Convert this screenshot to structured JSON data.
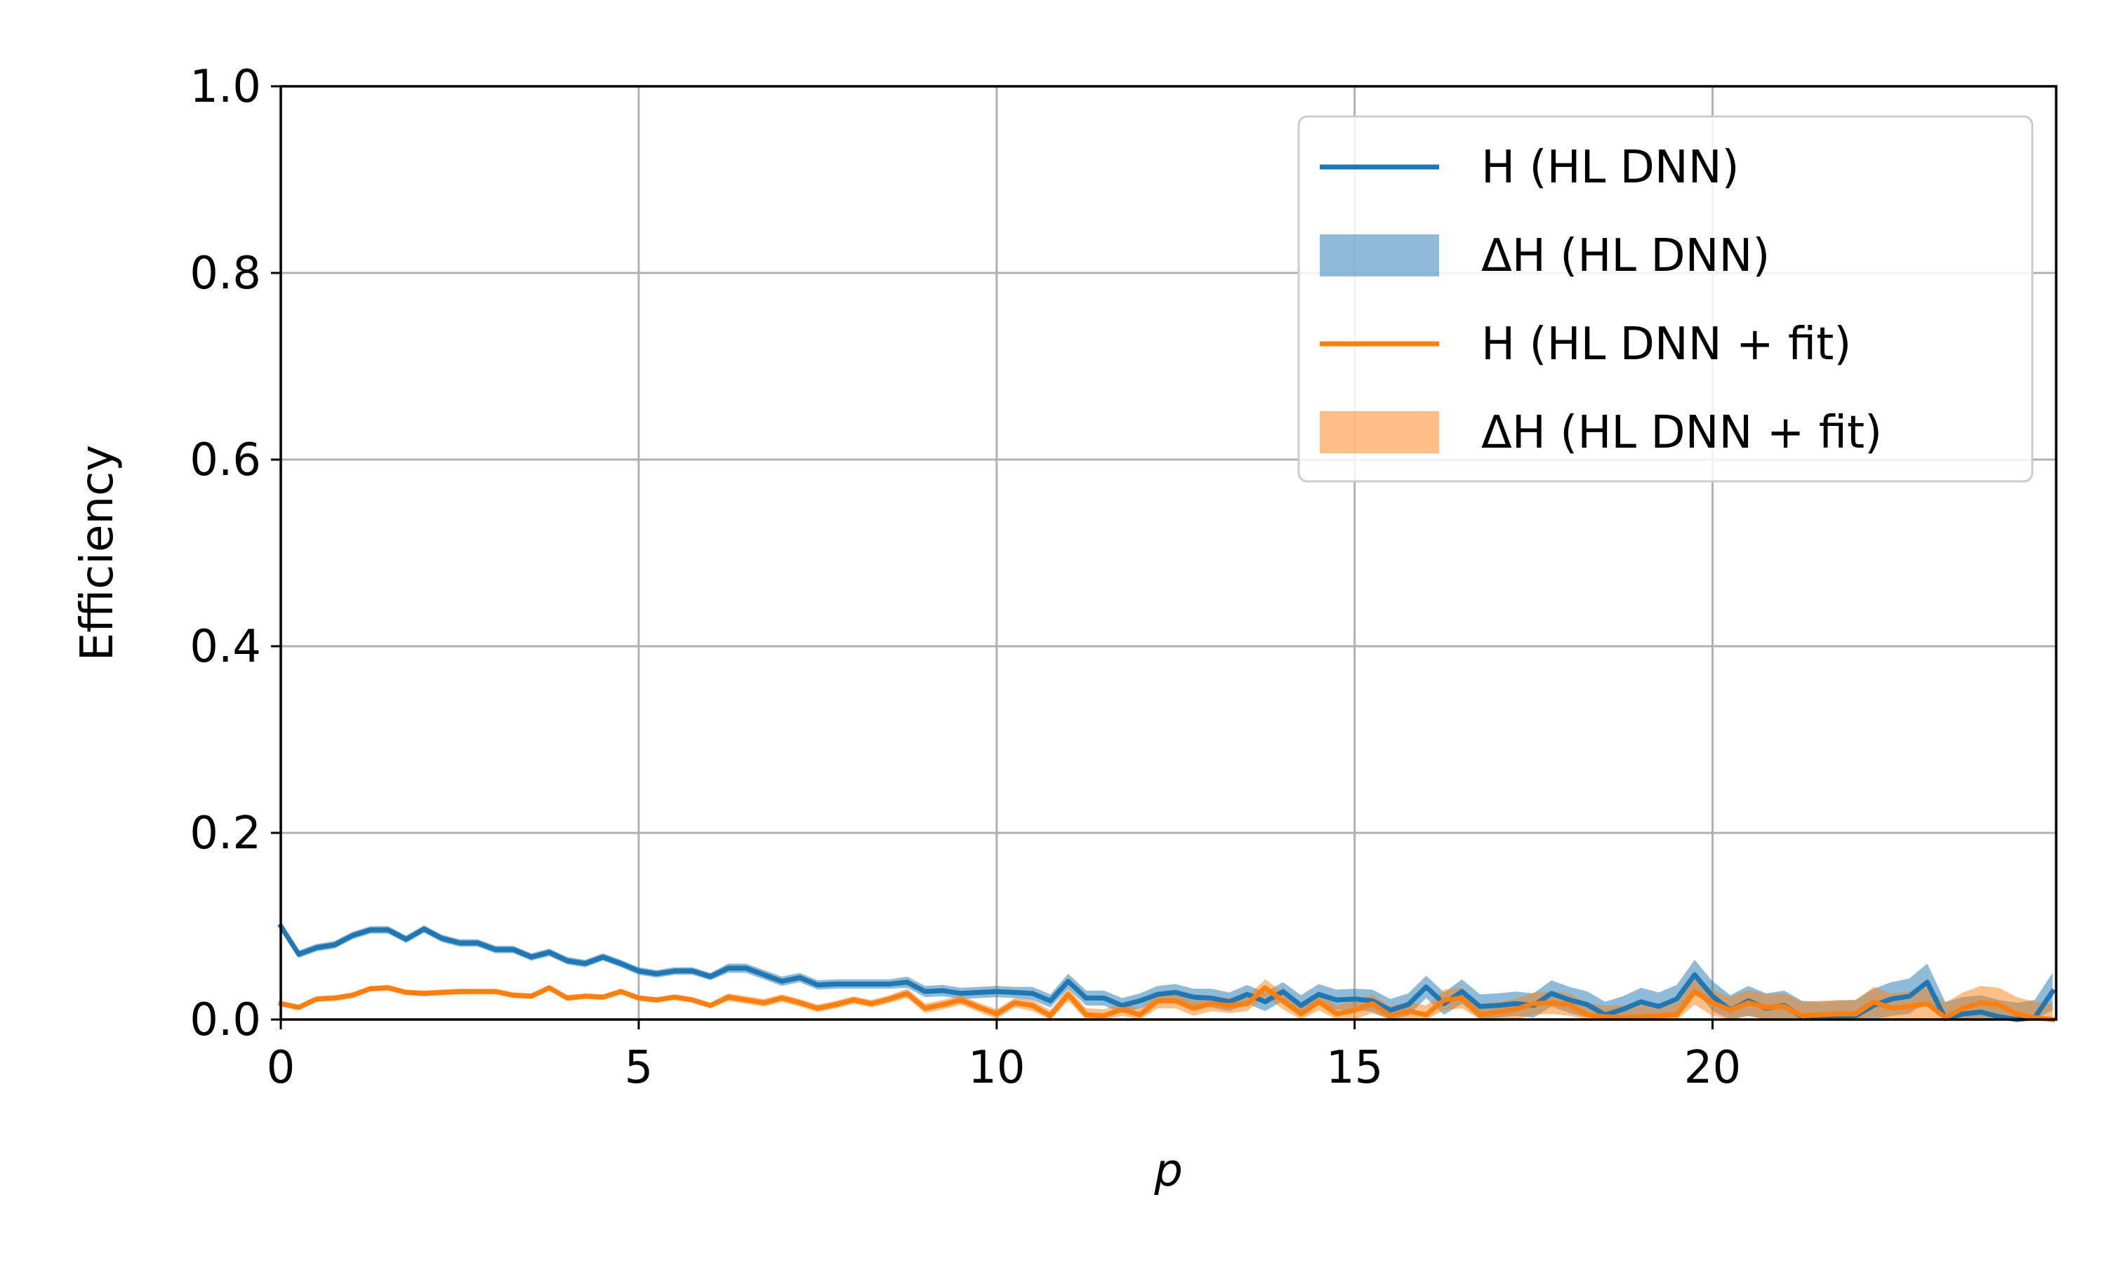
{
  "chart_data": {
    "type": "line",
    "title": "",
    "xlabel": "p",
    "ylabel": "Efficiency",
    "xlim": [
      0,
      24.8
    ],
    "ylim": [
      0.0,
      1.0
    ],
    "grid": true,
    "legend_placement": "top-right",
    "x_ticks": [
      0,
      5,
      10,
      15,
      20
    ],
    "x_tick_labels": [
      "0",
      "5",
      "10",
      "15",
      "20"
    ],
    "y_ticks": [
      0.0,
      0.2,
      0.4,
      0.6,
      0.8,
      1.0
    ],
    "y_tick_labels": [
      "0.0",
      "0.2",
      "0.4",
      "0.6",
      "0.8",
      "1.0"
    ],
    "x": [
      0.0,
      0.25,
      0.5,
      0.75,
      1.0,
      1.25,
      1.5,
      1.75,
      2.0,
      2.25,
      2.5,
      2.75,
      3.0,
      3.25,
      3.5,
      3.75,
      4.0,
      4.25,
      4.5,
      4.75,
      5.0,
      5.25,
      5.5,
      5.75,
      6.0,
      6.25,
      6.5,
      6.75,
      7.0,
      7.25,
      7.5,
      7.75,
      8.0,
      8.25,
      8.5,
      8.75,
      9.0,
      9.25,
      9.5,
      9.75,
      10.0,
      10.25,
      10.5,
      10.75,
      11.0,
      11.25,
      11.5,
      11.75,
      12.0,
      12.25,
      12.5,
      12.75,
      13.0,
      13.25,
      13.5,
      13.75,
      14.0,
      14.25,
      14.5,
      14.75,
      15.0,
      15.25,
      15.5,
      15.75,
      16.0,
      16.25,
      16.5,
      16.75,
      17.0,
      17.25,
      17.5,
      17.75,
      18.0,
      18.25,
      18.5,
      18.75,
      19.0,
      19.25,
      19.5,
      19.75,
      20.0,
      20.25,
      20.5,
      20.75,
      21.0,
      21.25,
      21.5,
      21.75,
      22.0,
      22.25,
      22.5,
      22.75,
      23.0,
      23.25,
      23.5,
      23.75,
      24.0,
      24.25,
      24.5,
      24.75
    ],
    "series": [
      {
        "name": "H (HL DNN)",
        "color": "#1f77b4",
        "band_name": "ΔH (HL DNN)",
        "band_color": "#1f77b4",
        "values": [
          0.1,
          0.07,
          0.077,
          0.08,
          0.09,
          0.096,
          0.096,
          0.086,
          0.097,
          0.087,
          0.082,
          0.082,
          0.075,
          0.075,
          0.067,
          0.072,
          0.063,
          0.06,
          0.067,
          0.06,
          0.052,
          0.049,
          0.052,
          0.052,
          0.046,
          0.055,
          0.055,
          0.048,
          0.041,
          0.045,
          0.037,
          0.038,
          0.038,
          0.038,
          0.038,
          0.04,
          0.03,
          0.031,
          0.028,
          0.029,
          0.03,
          0.029,
          0.028,
          0.02,
          0.041,
          0.023,
          0.023,
          0.015,
          0.02,
          0.027,
          0.029,
          0.024,
          0.023,
          0.019,
          0.027,
          0.019,
          0.03,
          0.015,
          0.027,
          0.021,
          0.022,
          0.02,
          0.01,
          0.016,
          0.035,
          0.017,
          0.03,
          0.014,
          0.015,
          0.017,
          0.015,
          0.028,
          0.021,
          0.016,
          0.005,
          0.011,
          0.019,
          0.014,
          0.022,
          0.048,
          0.025,
          0.01,
          0.02,
          0.012,
          0.015,
          0.003,
          0.002,
          0.003,
          0.004,
          0.015,
          0.022,
          0.025,
          0.04,
          0.001,
          0.006,
          0.008,
          0.003,
          0.0,
          0.002,
          0.03
        ],
        "band_halfwidth": [
          0.004,
          0.004,
          0.004,
          0.004,
          0.004,
          0.004,
          0.004,
          0.004,
          0.004,
          0.004,
          0.004,
          0.004,
          0.004,
          0.004,
          0.004,
          0.004,
          0.004,
          0.004,
          0.004,
          0.004,
          0.004,
          0.004,
          0.004,
          0.004,
          0.004,
          0.005,
          0.005,
          0.005,
          0.005,
          0.005,
          0.005,
          0.005,
          0.005,
          0.005,
          0.005,
          0.006,
          0.006,
          0.006,
          0.006,
          0.006,
          0.006,
          0.006,
          0.007,
          0.007,
          0.008,
          0.008,
          0.008,
          0.008,
          0.008,
          0.009,
          0.009,
          0.009,
          0.01,
          0.01,
          0.01,
          0.01,
          0.01,
          0.011,
          0.011,
          0.011,
          0.011,
          0.012,
          0.012,
          0.012,
          0.012,
          0.012,
          0.013,
          0.013,
          0.013,
          0.013,
          0.013,
          0.014,
          0.014,
          0.014,
          0.014,
          0.014,
          0.015,
          0.015,
          0.015,
          0.016,
          0.016,
          0.016,
          0.016,
          0.016,
          0.016,
          0.017,
          0.017,
          0.017,
          0.017,
          0.018,
          0.018,
          0.019,
          0.02,
          0.018,
          0.018,
          0.018,
          0.018,
          0.018,
          0.019,
          0.02
        ]
      },
      {
        "name": "H (HL DNN + fit)",
        "color": "#ff7f0e",
        "band_name": "ΔH (HL DNN + fit)",
        "band_color": "#ff7f0e",
        "values": [
          0.017,
          0.013,
          0.022,
          0.023,
          0.026,
          0.033,
          0.034,
          0.029,
          0.028,
          0.029,
          0.03,
          0.03,
          0.03,
          0.026,
          0.025,
          0.034,
          0.023,
          0.025,
          0.024,
          0.03,
          0.023,
          0.021,
          0.024,
          0.021,
          0.015,
          0.024,
          0.021,
          0.018,
          0.023,
          0.018,
          0.012,
          0.016,
          0.021,
          0.017,
          0.022,
          0.028,
          0.012,
          0.016,
          0.021,
          0.013,
          0.006,
          0.018,
          0.015,
          0.004,
          0.027,
          0.005,
          0.004,
          0.011,
          0.005,
          0.02,
          0.02,
          0.012,
          0.017,
          0.015,
          0.017,
          0.034,
          0.02,
          0.006,
          0.019,
          0.006,
          0.01,
          0.017,
          0.004,
          0.009,
          0.005,
          0.021,
          0.023,
          0.005,
          0.008,
          0.011,
          0.017,
          0.018,
          0.016,
          0.005,
          0.003,
          0.002,
          0.003,
          0.004,
          0.005,
          0.03,
          0.018,
          0.01,
          0.018,
          0.013,
          0.014,
          0.004,
          0.005,
          0.006,
          0.006,
          0.019,
          0.012,
          0.014,
          0.017,
          0.002,
          0.012,
          0.018,
          0.016,
          0.006,
          0.002,
          0.0
        ],
        "band_halfwidth": [
          0.003,
          0.003,
          0.003,
          0.003,
          0.003,
          0.003,
          0.003,
          0.003,
          0.003,
          0.003,
          0.003,
          0.003,
          0.003,
          0.003,
          0.003,
          0.003,
          0.003,
          0.003,
          0.003,
          0.003,
          0.003,
          0.003,
          0.003,
          0.003,
          0.003,
          0.004,
          0.004,
          0.004,
          0.004,
          0.004,
          0.004,
          0.004,
          0.004,
          0.004,
          0.004,
          0.005,
          0.005,
          0.005,
          0.005,
          0.005,
          0.005,
          0.005,
          0.006,
          0.006,
          0.007,
          0.007,
          0.007,
          0.007,
          0.007,
          0.008,
          0.008,
          0.008,
          0.008,
          0.008,
          0.008,
          0.009,
          0.009,
          0.009,
          0.009,
          0.009,
          0.01,
          0.01,
          0.01,
          0.01,
          0.01,
          0.011,
          0.011,
          0.011,
          0.011,
          0.011,
          0.012,
          0.012,
          0.012,
          0.012,
          0.012,
          0.013,
          0.013,
          0.013,
          0.013,
          0.014,
          0.014,
          0.014,
          0.014,
          0.014,
          0.014,
          0.015,
          0.015,
          0.015,
          0.015,
          0.016,
          0.016,
          0.016,
          0.017,
          0.016,
          0.017,
          0.018,
          0.018,
          0.018,
          0.017,
          0.017
        ]
      }
    ]
  }
}
